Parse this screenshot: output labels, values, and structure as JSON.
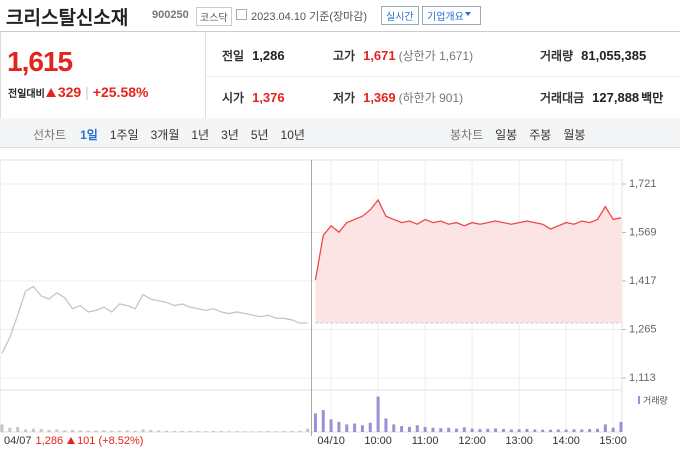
{
  "header": {
    "title": "크리스탈신소재",
    "code": "900250",
    "market": "코스닥",
    "date": "2023.04.10 기준(장마감)",
    "buttons": [
      "실시간",
      "기업개요"
    ]
  },
  "price": {
    "current": "1,615",
    "change_label": "전일대비",
    "change": "329",
    "change_pct": "+25.58%",
    "color": "#e5231d"
  },
  "summary": [
    {
      "label": "전일",
      "value": "1,286"
    },
    {
      "label": "고가",
      "value": "1,671",
      "note": "(상한가 1,671)",
      "color": "#e5231d"
    },
    {
      "label": "거래량",
      "value": "81,055,385"
    },
    {
      "label": "시가",
      "value": "1,376",
      "color": "#e5231d"
    },
    {
      "label": "저가",
      "value": "1,369",
      "note": "(하한가 901)",
      "color": "#e5231d"
    },
    {
      "label": "거래대금",
      "value": "127,888",
      "unit": "백만"
    }
  ],
  "tabs": {
    "line_label": "선차트",
    "line_periods": [
      "1일",
      "1주일",
      "3개월",
      "1년",
      "3년",
      "5년",
      "10년"
    ],
    "selected": 0,
    "candle_label": "봉차트",
    "candle_periods": [
      "일봉",
      "주봉",
      "월봉"
    ]
  },
  "chart_data": {
    "type": "line",
    "categories": [
      null,
      null,
      null,
      null,
      null,
      null,
      null,
      null,
      null,
      null,
      null,
      null,
      null,
      null,
      null,
      null,
      null,
      null,
      null,
      null,
      null,
      null,
      null,
      null,
      null,
      null,
      null,
      null,
      null,
      null,
      null,
      null,
      null,
      null,
      null,
      null,
      null,
      null,
      null,
      null,
      null,
      null,
      "04/10",
      null,
      null,
      null,
      null,
      null,
      "10:00",
      null,
      null,
      null,
      null,
      null,
      "11:00",
      null,
      null,
      null,
      null,
      null,
      "12:00",
      null,
      null,
      null,
      null,
      null,
      "13:00",
      null,
      null,
      null,
      null,
      null,
      "14:00",
      null,
      null,
      null,
      null,
      null,
      "15:00",
      null
    ],
    "series": [
      {
        "color": "#c6c6c6",
        "values": [
          1190,
          1240,
          1310,
          1385,
          1400,
          1370,
          1360,
          1380,
          1365,
          1330,
          1340,
          1320,
          1325,
          1335,
          1320,
          1345,
          1340,
          1330,
          1375,
          1360,
          1355,
          1350,
          1340,
          1345,
          1335,
          1330,
          1325,
          1330,
          1320,
          1315,
          1320,
          1315,
          1310,
          1305,
          1310,
          1300,
          1300,
          1295,
          1285,
          1286,
          null,
          null,
          null,
          null,
          null,
          null,
          null,
          null,
          null,
          null,
          null,
          null,
          null,
          null,
          null,
          null,
          null,
          null,
          null,
          null,
          null,
          null,
          null,
          null,
          null,
          null,
          null,
          null,
          null,
          null,
          null,
          null,
          null,
          null,
          null,
          null,
          null,
          null,
          null,
          null
        ]
      },
      {
        "color": "#f0464b",
        "fill": "#fde4e4",
        "values": [
          null,
          null,
          null,
          null,
          null,
          null,
          null,
          null,
          null,
          null,
          null,
          null,
          null,
          null,
          null,
          null,
          null,
          null,
          null,
          null,
          null,
          null,
          null,
          null,
          null,
          null,
          null,
          null,
          null,
          null,
          null,
          null,
          null,
          null,
          null,
          null,
          null,
          null,
          null,
          null,
          1420,
          1560,
          1590,
          1570,
          1600,
          1610,
          1620,
          1640,
          1671,
          1620,
          1610,
          1600,
          1605,
          1595,
          1610,
          1600,
          1605,
          1595,
          1600,
          1590,
          1600,
          1595,
          1600,
          1605,
          1600,
          1595,
          1600,
          1605,
          1600,
          1595,
          1580,
          1590,
          1600,
          1595,
          1605,
          1600,
          1610,
          1650,
          1610,
          1615
        ]
      }
    ],
    "reference_line": 1286,
    "ylim": [
      1113,
      1721
    ],
    "yticks": [
      {
        "value": 1113,
        "label": "1,113"
      },
      {
        "value": 1265,
        "label": "1,265"
      },
      {
        "value": 1417,
        "label": "1,417"
      },
      {
        "value": 1569,
        "label": "1,569"
      },
      {
        "value": 1721,
        "label": "1,721"
      }
    ],
    "grid": true,
    "volume": {
      "name": "거래량",
      "color": "#9d8fd6",
      "values": [
        900000,
        500000,
        600000,
        300000,
        400000,
        350000,
        250000,
        300000,
        200000,
        250000,
        200000,
        150000,
        180000,
        220000,
        150000,
        160000,
        200000,
        140000,
        300000,
        250000,
        180000,
        150000,
        120000,
        140000,
        130000,
        110000,
        100000,
        120000,
        110000,
        90000,
        100000,
        90000,
        80000,
        100000,
        120000,
        90000,
        110000,
        130000,
        150000,
        400000,
        2200000,
        2600000,
        1500000,
        1200000,
        900000,
        1000000,
        800000,
        1100000,
        4200000,
        1600000,
        900000,
        700000,
        600000,
        800000,
        600000,
        500000,
        450000,
        500000,
        400000,
        550000,
        400000,
        350000,
        380000,
        420000,
        360000,
        300000,
        320000,
        350000,
        300000,
        280000,
        260000,
        300000,
        280000,
        320000,
        300000,
        350000,
        380000,
        900000,
        500000,
        1200000
      ]
    },
    "volume_lim": [
      0,
      4500000
    ]
  },
  "footer": {
    "date": "04/07",
    "close": "1,286",
    "change": "101",
    "change_pct": "(+8.52%)"
  }
}
